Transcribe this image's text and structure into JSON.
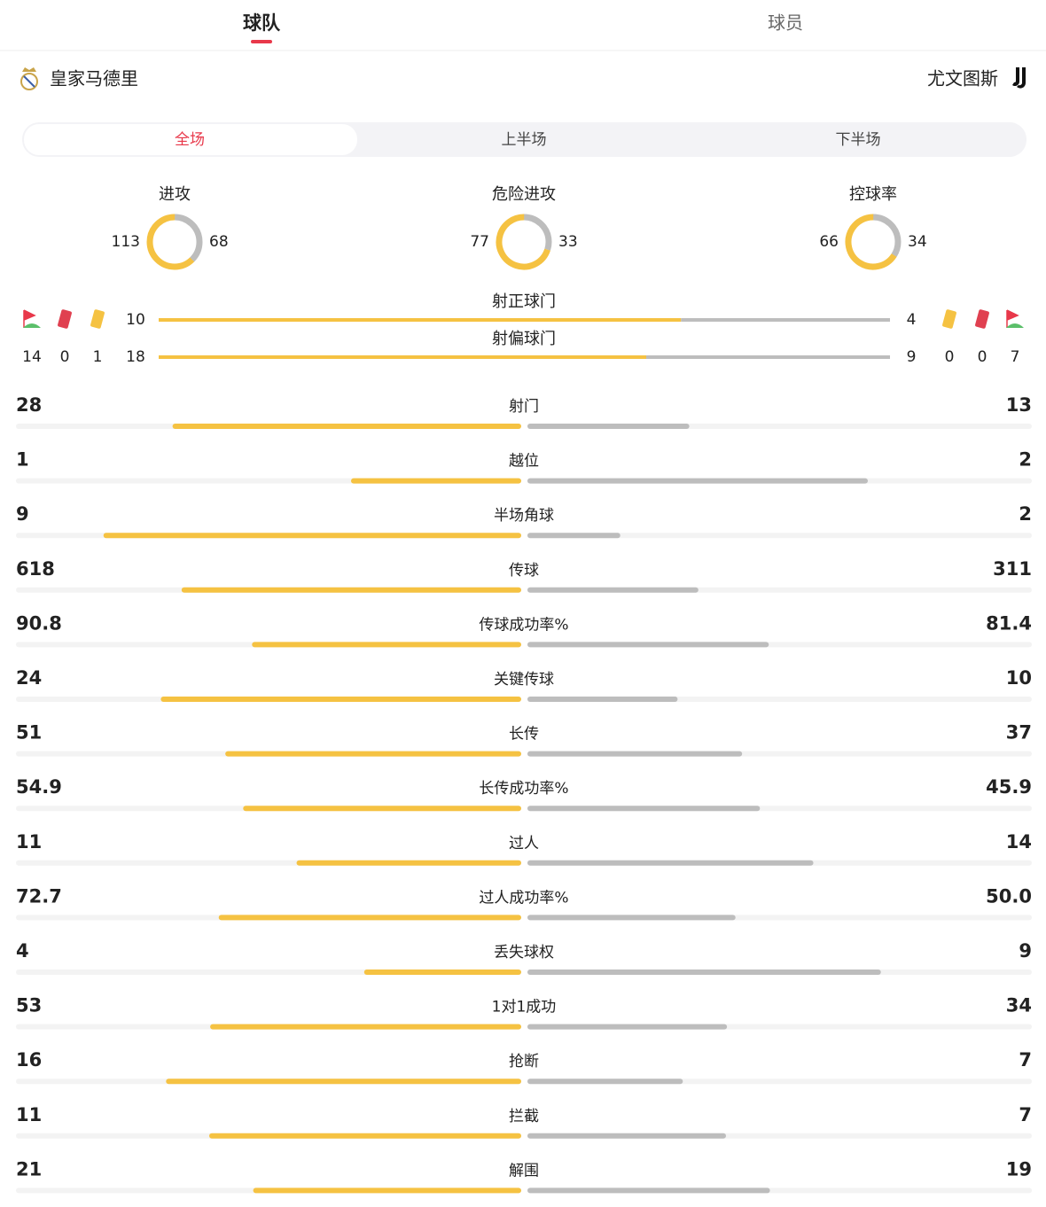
{
  "tabs": [
    "球队",
    "球员"
  ],
  "home": {
    "name": "皇家马德里",
    "corners": 14,
    "red_cards": 0,
    "yellow_cards": 1
  },
  "away": {
    "name": "尤文图斯",
    "yellow_cards": 0,
    "red_cards": 0,
    "corners": 7
  },
  "periods": [
    "全场",
    "上半场",
    "下半场"
  ],
  "donuts": [
    {
      "label": "进攻",
      "home": 113,
      "away": 68
    },
    {
      "label": "危险进攻",
      "home": 77,
      "away": 33
    },
    {
      "label": "控球率",
      "home": 66,
      "away": 34
    }
  ],
  "shot_bars": [
    {
      "label": "射正球门",
      "home": 10,
      "away": 4
    },
    {
      "label": "射偏球门",
      "home": 18,
      "away": 9
    }
  ],
  "stats": [
    {
      "label": "射门",
      "home": 28,
      "away": 13
    },
    {
      "label": "越位",
      "home": 1,
      "away": 2
    },
    {
      "label": "半场角球",
      "home": 9,
      "away": 2
    },
    {
      "label": "传球",
      "home": 618,
      "away": 311
    },
    {
      "label": "传球成功率%",
      "home": 90.8,
      "away": 81.4
    },
    {
      "label": "关键传球",
      "home": 24,
      "away": 10
    },
    {
      "label": "长传",
      "home": 51,
      "away": 37
    },
    {
      "label": "长传成功率%",
      "home": 54.9,
      "away": 45.9
    },
    {
      "label": "过人",
      "home": 11,
      "away": 14
    },
    {
      "label": "过人成功率%",
      "home": 72.7,
      "away": 50,
      "away_label": "50.0"
    },
    {
      "label": "丢失球权",
      "home": 4,
      "away": 9
    },
    {
      "label": "1对1成功",
      "home": 53,
      "away": 34
    },
    {
      "label": "抢断",
      "home": 16,
      "away": 7
    },
    {
      "label": "拦截",
      "home": 11,
      "away": 7
    },
    {
      "label": "解围",
      "home": 21,
      "away": 19
    }
  ]
}
